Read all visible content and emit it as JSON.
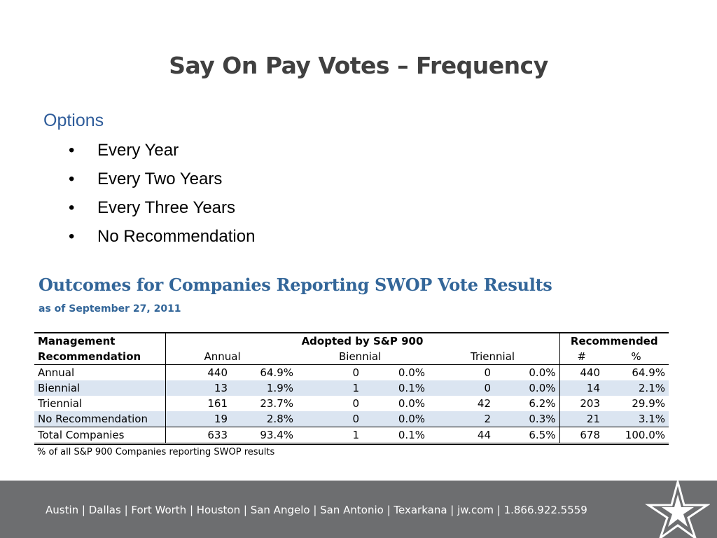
{
  "slide": {
    "title": "Say On Pay Votes – Frequency",
    "options_heading": "Options",
    "bullet_glyph": "•",
    "bullets": [
      "Every Year",
      "Every Two Years",
      "Every Three Years",
      "No Recommendation"
    ]
  },
  "table": {
    "title": "Outcomes for Companies Reporting SWOP Vote Results",
    "subtitle": "as of September 27, 2011",
    "header_row1": {
      "management": "Management",
      "adopted": "Adopted by S&P 900",
      "recommended": "Recommended"
    },
    "header_row2": {
      "recommendation": "Recommendation",
      "annual": "Annual",
      "biennial": "Biennial",
      "triennial": "Triennial",
      "count": "#",
      "percent": "%"
    },
    "rows": [
      {
        "label": "Annual",
        "annual_n": "440",
        "annual_pct": "64.9%",
        "biennial_n": "0",
        "biennial_pct": "0.0%",
        "triennial_n": "0",
        "triennial_pct": "0.0%",
        "rec_n": "440",
        "rec_pct": "64.9%"
      },
      {
        "label": "Biennial",
        "annual_n": "13",
        "annual_pct": "1.9%",
        "biennial_n": "1",
        "biennial_pct": "0.1%",
        "triennial_n": "0",
        "triennial_pct": "0.0%",
        "rec_n": "14",
        "rec_pct": "2.1%"
      },
      {
        "label": "Triennial",
        "annual_n": "161",
        "annual_pct": "23.7%",
        "biennial_n": "0",
        "biennial_pct": "0.0%",
        "triennial_n": "42",
        "triennial_pct": "6.2%",
        "rec_n": "203",
        "rec_pct": "29.9%"
      },
      {
        "label": "No Recommendation",
        "annual_n": "19",
        "annual_pct": "2.8%",
        "biennial_n": "0",
        "biennial_pct": "0.0%",
        "triennial_n": "2",
        "triennial_pct": "0.3%",
        "rec_n": "21",
        "rec_pct": "3.1%"
      },
      {
        "label": "Total Companies",
        "annual_n": "633",
        "annual_pct": "93.4%",
        "biennial_n": "1",
        "biennial_pct": "0.1%",
        "triennial_n": "44",
        "triennial_pct": "6.5%",
        "rec_n": "678",
        "rec_pct": "100.0%"
      }
    ],
    "footnote": "% of all S&P 900 Companies reporting SWOP results"
  },
  "footer": {
    "offices": "Austin | Dallas | Fort Worth | Houston | San Angelo | San Antonio | Texarkana | jw.com | 1.866.922.5559",
    "logo_icon": "star-logo-icon"
  },
  "colors": {
    "title": "#404040",
    "heading_blue": "#2e5c9a",
    "table_title": "#336699",
    "row_band": "#dbe5f1",
    "footer_bg": "#6d6e70"
  }
}
